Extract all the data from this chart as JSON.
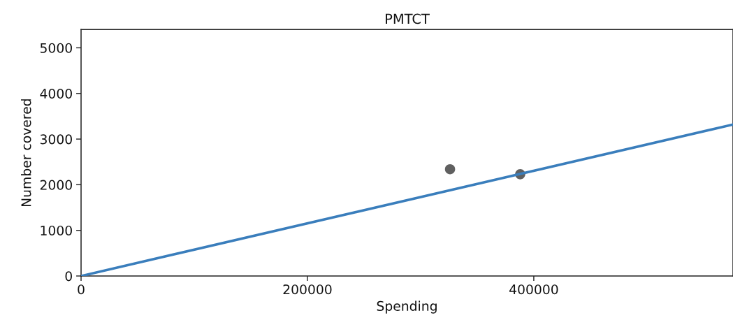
{
  "chart_data": {
    "type": "scatter",
    "title": "PMTCT",
    "xlabel": "Spending",
    "ylabel": "Number covered",
    "series": [
      {
        "x": [
          326000,
          388000
        ],
        "values": [
          2340,
          2230
        ],
        "color": "#606060",
        "marker": "circle"
      },
      {
        "type": "line",
        "x": [
          0,
          576000
        ],
        "values": [
          0,
          3320
        ],
        "color": "#3a7ebc",
        "marker": "none",
        "line_style": "solid"
      }
    ],
    "xlim": [
      0,
      576000
    ],
    "ylim": [
      0,
      5400
    ],
    "xticks": [
      0,
      200000,
      400000
    ],
    "yticks": [
      0,
      1000,
      2000,
      3000,
      4000,
      5000
    ],
    "grid": false
  }
}
